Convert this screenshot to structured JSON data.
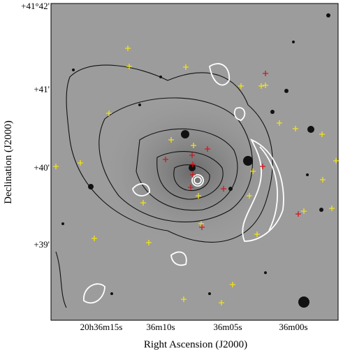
{
  "axes": {
    "x_title": "Right Ascension (J2000)",
    "y_title": "Declination (J2000)",
    "x_ticks": [
      "20h36m15s",
      "36m10s",
      "36m05s",
      "36m00s"
    ],
    "y_ticks": [
      "+41°42'",
      "+41'",
      "+40'",
      "+39'"
    ]
  }
}
